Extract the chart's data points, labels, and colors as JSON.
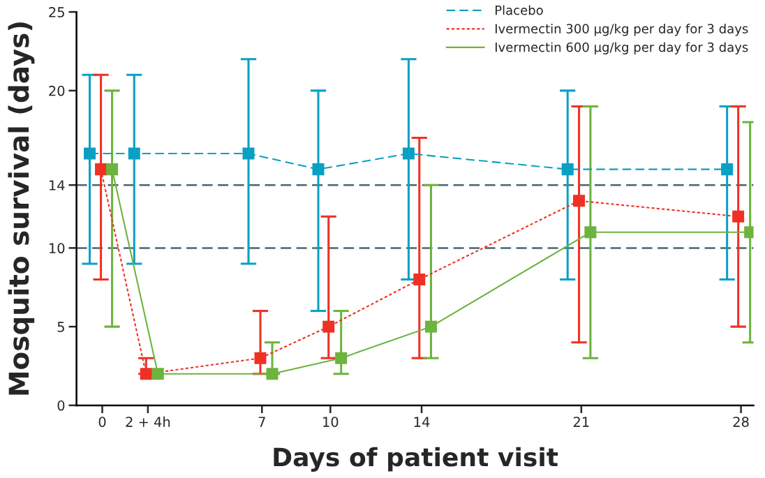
{
  "chart_data": {
    "type": "line",
    "xlabel": "Days of patient visit",
    "ylabel": "Mosquito survival (days)",
    "xlim": [
      -1.13,
      28.55
    ],
    "xticks": [
      0,
      {
        "value": 2,
        "label": "2 + 4h"
      },
      7,
      10,
      14,
      21,
      28
    ],
    "ylim": [
      0,
      25
    ],
    "yticks": [
      0,
      5,
      10,
      14,
      20,
      25
    ],
    "grid": false,
    "legend": "top right",
    "marker": "square",
    "ref_lines": [
      {
        "axis": "y",
        "value": 14,
        "color": "#4a6572",
        "line_style": "dashed"
      },
      {
        "axis": "y",
        "value": 10,
        "color": "#4a6572",
        "line_style": "dashed"
      }
    ],
    "series": [
      {
        "name": "Placebo",
        "color": "#0aa0c4",
        "line_style": "dashed",
        "x": [
          -0.55,
          1.4,
          6.41,
          9.47,
          13.43,
          20.4,
          27.39
        ],
        "values": [
          16,
          16,
          16,
          15,
          16,
          15,
          15
        ],
        "errors": [
          [
            9,
            21
          ],
          [
            9,
            21
          ],
          [
            9,
            22
          ],
          [
            6,
            20
          ],
          [
            8,
            22
          ],
          [
            8,
            20
          ],
          [
            8,
            19
          ]
        ]
      },
      {
        "name": "Ivermectin 300 μg/kg per day for 3 days",
        "color": "#ee3124",
        "line_style": "dotted",
        "x": [
          -0.06,
          1.92,
          6.93,
          9.92,
          13.9,
          20.9,
          27.88
        ],
        "values": [
          15,
          2,
          3,
          5,
          8,
          13,
          12
        ],
        "errors": [
          [
            8,
            21
          ],
          [
            2,
            3
          ],
          [
            2,
            6
          ],
          [
            3,
            12
          ],
          [
            3,
            17
          ],
          [
            4,
            19
          ],
          [
            5,
            19
          ]
        ]
      },
      {
        "name": "Ivermectin 600 μg/kg per day for 3 days",
        "color": "#6db33f",
        "line_style": "solid",
        "x": [
          0.43,
          2.44,
          7.45,
          10.47,
          14.41,
          21.4,
          28.4
        ],
        "values": [
          15,
          2,
          2,
          3,
          5,
          11,
          11
        ],
        "errors": [
          [
            5,
            20
          ],
          null,
          [
            2,
            4
          ],
          [
            2,
            6
          ],
          [
            3,
            14
          ],
          [
            3,
            19
          ],
          [
            4,
            18
          ]
        ]
      }
    ]
  }
}
